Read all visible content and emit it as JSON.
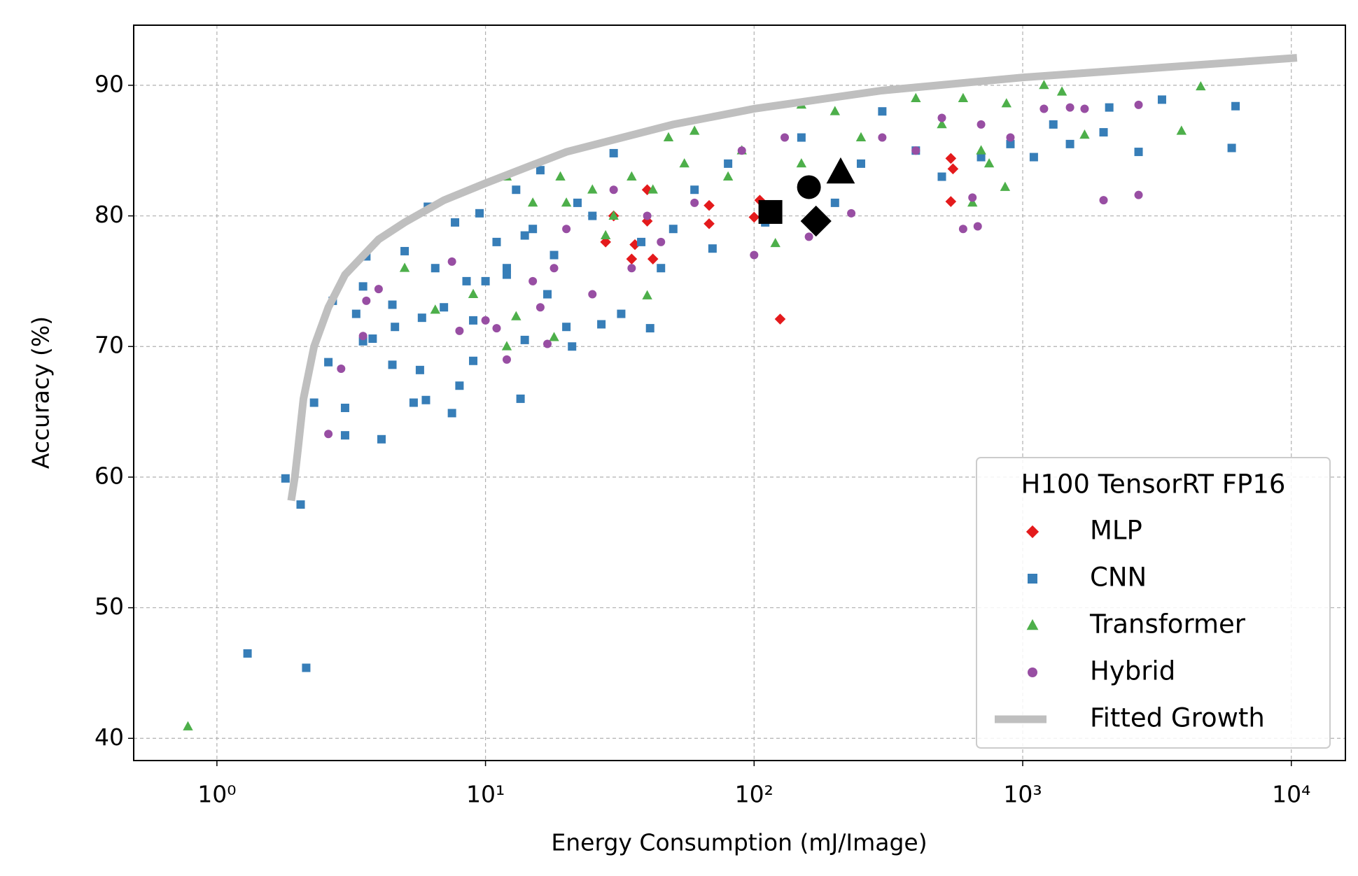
{
  "chart_data": {
    "type": "scatter",
    "xlabel": "Energy Consumption (mJ/Image)",
    "ylabel": "Accuracy (%)",
    "xscale": "log",
    "grid": true,
    "legend_title": "H100 TensorRT FP16",
    "legend": "lower right",
    "xlim": [
      0.49,
      15900
    ],
    "ylim": [
      38.3,
      94.6
    ],
    "xticks": [
      {
        "value": 1,
        "label": "10⁰"
      },
      {
        "value": 10,
        "label": "10¹"
      },
      {
        "value": 100,
        "label": "10²"
      },
      {
        "value": 1000,
        "label": "10³"
      },
      {
        "value": 10000,
        "label": "10⁴"
      }
    ],
    "yticks": [
      40,
      50,
      60,
      70,
      80,
      90
    ],
    "series": [
      {
        "name": "MLP",
        "color": "#e41a1c",
        "marker": "diamond",
        "x": [
          28,
          35,
          36,
          40,
          42,
          68,
          68,
          100,
          105,
          125,
          540,
          550,
          540,
          40,
          30
        ],
        "values": [
          78,
          76.7,
          77.8,
          79.6,
          76.7,
          80.8,
          79.4,
          79.9,
          81.2,
          72.1,
          84.4,
          83.6,
          81.1,
          82,
          80
        ]
      },
      {
        "name": "CNN",
        "color": "#377eb8",
        "marker": "square",
        "x": [
          1.3,
          2.15,
          1.8,
          2.05,
          2.3,
          2.6,
          2.7,
          3.0,
          3.0,
          3.3,
          3.5,
          3.6,
          3.5,
          3.8,
          4.1,
          4.5,
          4.5,
          4.6,
          5,
          5.4,
          5.7,
          5.8,
          6,
          6.1,
          6.5,
          7,
          7.5,
          7.7,
          8,
          8.5,
          9,
          9.5,
          10,
          11,
          12,
          13,
          13.5,
          14,
          15,
          16,
          18,
          20,
          21,
          22,
          25,
          27,
          30,
          32,
          38,
          41,
          45,
          50,
          60,
          70,
          80,
          110,
          150,
          200,
          250,
          300,
          400,
          500,
          700,
          900,
          1100,
          1300,
          1500,
          2000,
          2100,
          2700,
          3300,
          6000,
          6200,
          12,
          14,
          9,
          17
        ],
        "values": [
          46.5,
          45.4,
          59.9,
          57.9,
          65.7,
          68.8,
          73.5,
          63.2,
          65.3,
          72.5,
          74.6,
          76.9,
          70.4,
          70.6,
          62.9,
          73.2,
          68.6,
          71.5,
          77.3,
          65.7,
          68.2,
          72.2,
          65.9,
          80.7,
          76,
          73,
          64.9,
          79.5,
          67,
          75,
          68.9,
          80.2,
          75,
          78,
          76,
          82,
          66,
          70.5,
          79,
          83.5,
          77,
          71.5,
          70,
          81,
          80,
          71.7,
          84.8,
          72.5,
          78,
          71.4,
          76,
          79,
          82,
          77.5,
          84,
          79.5,
          86,
          81,
          84,
          88,
          85,
          83,
          84.5,
          85.5,
          84.5,
          87,
          85.5,
          86.4,
          88.3,
          84.9,
          88.9,
          85.2,
          88.4,
          75.5,
          78.5,
          72,
          74
        ]
      },
      {
        "name": "Transformer",
        "color": "#4daf4a",
        "marker": "triangle",
        "x": [
          0.78,
          5,
          6.5,
          9,
          12,
          12,
          13,
          15,
          18,
          19,
          25,
          28,
          35,
          40,
          42,
          48,
          55,
          60,
          80,
          90,
          120,
          150,
          150,
          200,
          250,
          400,
          500,
          600,
          650,
          700,
          750,
          860,
          870,
          1200,
          1400,
          1700,
          3900,
          4600,
          30,
          20
        ],
        "values": [
          40.9,
          76,
          72.8,
          74,
          70,
          83,
          72.3,
          81,
          70.7,
          83,
          82,
          78.5,
          83,
          73.9,
          82,
          86,
          84,
          86.5,
          83,
          85,
          77.9,
          88.5,
          84,
          88,
          86,
          89,
          87,
          89,
          81,
          85,
          84,
          82.2,
          88.6,
          90,
          89.5,
          86.2,
          86.5,
          89.9,
          80,
          81
        ]
      },
      {
        "name": "Hybrid",
        "color": "#984ea3",
        "marker": "circle",
        "x": [
          2.6,
          2.9,
          3.5,
          3.6,
          4,
          7.5,
          8,
          10,
          11,
          12,
          15,
          16,
          17,
          18,
          20,
          25,
          30,
          35,
          45,
          60,
          90,
          100,
          130,
          160,
          230,
          300,
          400,
          500,
          600,
          650,
          680,
          700,
          900,
          1200,
          1500,
          2000,
          2700,
          2700,
          1700,
          40
        ],
        "values": [
          63.3,
          68.3,
          70.8,
          73.5,
          74.4,
          76.5,
          71.2,
          72,
          71.4,
          69,
          75,
          73,
          70.2,
          76,
          79,
          74,
          82,
          76,
          78,
          81,
          85,
          77,
          86,
          78.4,
          80.2,
          86,
          85,
          87.5,
          79,
          81.4,
          79.2,
          87,
          86,
          88.2,
          88.3,
          81.2,
          81.6,
          88.5,
          88.2,
          80
        ]
      },
      {
        "name": "Fitted Growth",
        "color": "#bfbfbf",
        "line": true,
        "x": [
          1.89,
          1.95,
          2.0,
          2.1,
          2.3,
          2.6,
          3,
          4,
          5,
          7,
          10,
          20,
          50,
          100,
          300,
          1000,
          3000,
          10500
        ],
        "values": [
          58.2,
          60,
          62,
          66,
          70,
          73,
          75.5,
          78.2,
          79.5,
          81.2,
          82.5,
          84.9,
          87,
          88.2,
          89.6,
          90.6,
          91.3,
          92.1
        ]
      },
      {
        "color": "#000000",
        "marker": "square",
        "big": true,
        "x": [
          115
        ],
        "values": [
          80.3
        ]
      },
      {
        "color": "#000000",
        "marker": "circle",
        "big": true,
        "x": [
          160
        ],
        "values": [
          82.2
        ]
      },
      {
        "color": "#000000",
        "marker": "diamond",
        "big": true,
        "x": [
          170
        ],
        "values": [
          79.6
        ]
      },
      {
        "color": "#000000",
        "marker": "triangle",
        "big": true,
        "x": [
          210
        ],
        "values": [
          83.3
        ]
      }
    ]
  }
}
